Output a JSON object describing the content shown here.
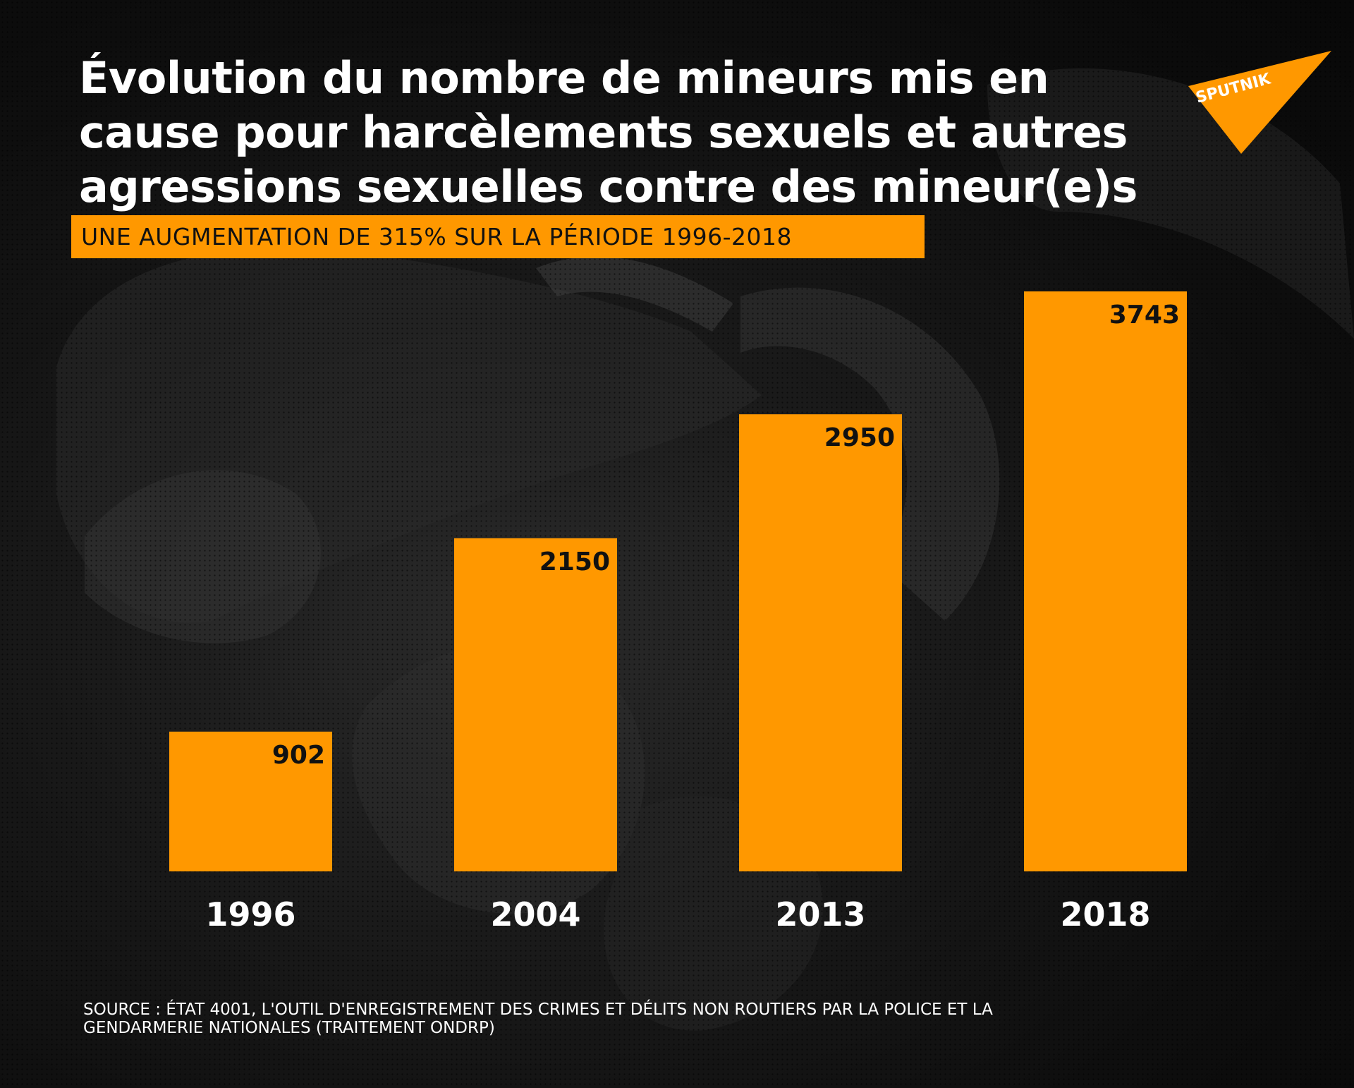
{
  "title_lines": [
    "Évolution du nombre de mineurs mis en",
    "cause pour harcèlements sexuels et autres",
    "agressions sexuelles contre des mineur(e)s"
  ],
  "subtitle": "UNE AUGMENTATION DE 315% SUR LA PÉRIODE 1996-2018",
  "logo_text": "SPUTNIK",
  "source_lines": [
    "SOURCE : ÉTAT 4001, L'OUTIL D'ENREGISTREMENT DES CRIMES ET DÉLITS NON ROUTIERS PAR LA POLICE ET LA",
    "GENDARMERIE NATIONALES (TRAITEMENT ONDRP)"
  ],
  "colors": {
    "accent": "#ff9800",
    "background": "#0b0b0b",
    "text": "#ffffff",
    "bar_label": "#111111"
  },
  "chart_data": {
    "type": "bar",
    "title": "Évolution du nombre de mineurs mis en cause pour harcèlements sexuels et autres agressions sexuelles contre des mineur(e)s",
    "subtitle": "UNE AUGMENTATION DE 315% SUR LA PÉRIODE 1996-2018",
    "categories": [
      "1996",
      "2004",
      "2013",
      "2018"
    ],
    "values": [
      902,
      2150,
      2950,
      3743
    ],
    "xlabel": "",
    "ylabel": "",
    "ylim": [
      0,
      3743
    ],
    "grid": false,
    "legend": "none",
    "data_labels": [
      "902",
      "2150",
      "2950",
      "3743"
    ]
  }
}
